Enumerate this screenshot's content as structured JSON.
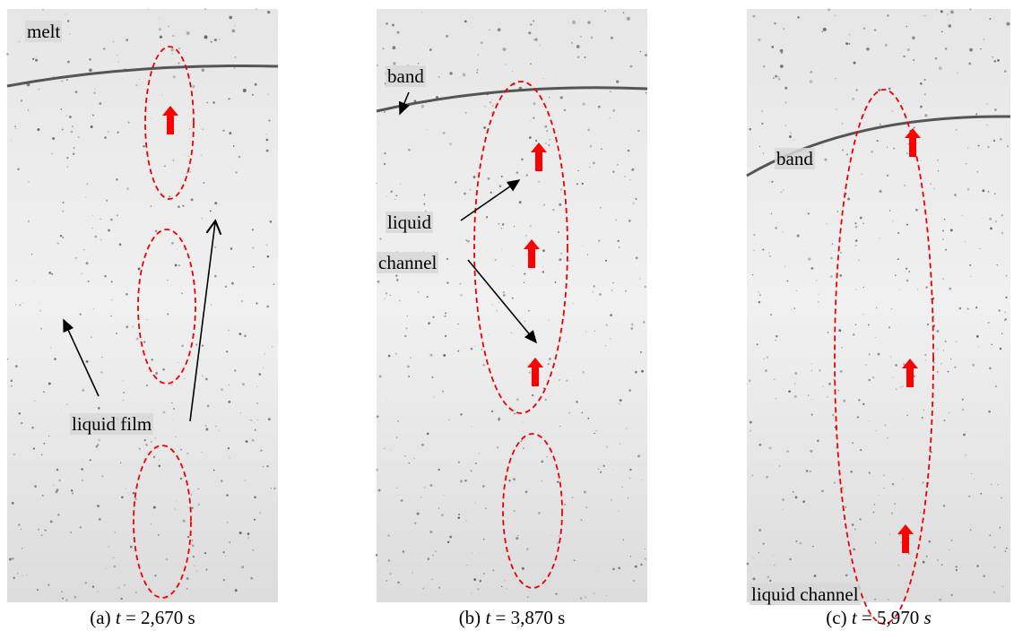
{
  "panels": [
    {
      "caption": {
        "label": "(a)",
        "variable": "t",
        "equals": "= 2,670",
        "unit": "s"
      },
      "labels": [
        "melt",
        "liquid film"
      ]
    },
    {
      "caption": {
        "label": "(b)",
        "variable": "t",
        "equals": "= 3,870",
        "unit": "s"
      },
      "labels": [
        "band",
        "liquid",
        "channel"
      ]
    },
    {
      "caption": {
        "label": "(c)",
        "variable": "t",
        "equals": "= 5,970",
        "unit": "s"
      },
      "labels": [
        "band",
        "liquid channel"
      ]
    }
  ]
}
